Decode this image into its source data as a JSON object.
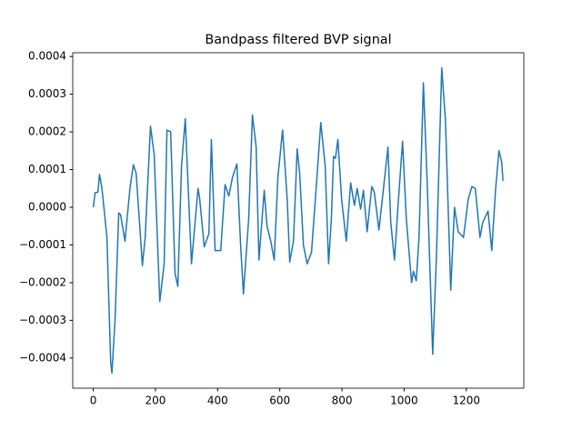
{
  "chart_data": {
    "type": "line",
    "title": "Bandpass filtered BVP signal",
    "x": [
      0,
      6,
      15,
      20,
      28,
      44,
      56,
      60,
      70,
      82,
      88,
      102,
      118,
      129,
      138,
      152,
      158,
      167,
      184,
      196,
      214,
      228,
      237,
      249,
      263,
      272,
      284,
      296,
      307,
      316,
      337,
      342,
      357,
      372,
      380,
      392,
      410,
      424,
      436,
      448,
      462,
      474,
      483,
      500,
      512,
      524,
      533,
      550,
      559,
      571,
      582,
      594,
      609,
      624,
      632,
      644,
      656,
      664,
      676,
      688,
      702,
      717,
      732,
      746,
      757,
      766,
      773,
      779,
      787,
      799,
      814,
      828,
      840,
      849,
      860,
      869,
      881,
      896,
      904,
      919,
      931,
      948,
      957,
      969,
      980,
      995,
      1007,
      1024,
      1030,
      1039,
      1048,
      1062,
      1074,
      1092,
      1104,
      1121,
      1133,
      1150,
      1162,
      1174,
      1191,
      1206,
      1218,
      1229,
      1244,
      1253,
      1270,
      1282,
      1294,
      1305,
      1314,
      1318
    ],
    "series": [
      {
        "name": "BVP",
        "color": "#1f77b4",
        "values": [
          0,
          3.9e-05,
          4e-05,
          8.7e-05,
          5e-05,
          -8e-05,
          -0.00041,
          -0.00044,
          -0.0003,
          -1.5e-05,
          -2e-05,
          -9e-05,
          5e-05,
          0.000113,
          9e-05,
          -8e-05,
          -0.000155,
          -8e-05,
          0.000215,
          0.00014,
          -0.00025,
          -0.00015,
          0.000205,
          0.0002,
          -0.000175,
          -0.00021,
          0.00011,
          0.000235,
          2e-05,
          -0.00015,
          5e-05,
          2.5e-05,
          -0.000105,
          -7e-05,
          0.00018,
          -0.000115,
          -0.000115,
          6e-05,
          3e-05,
          8e-05,
          0.000115,
          -0.0001,
          -0.00023,
          -3e-05,
          0.000245,
          0.00016,
          -0.00014,
          4.5e-05,
          -5e-05,
          -9e-05,
          -0.00014,
          8e-05,
          0.000205,
          2e-05,
          -0.000145,
          -9e-05,
          0.000155,
          9e-05,
          -0.0001,
          -0.00015,
          -0.00012,
          5e-05,
          0.000225,
          0.00011,
          -0.00015,
          -3e-05,
          0.000135,
          0.00013,
          0.00018,
          2e-05,
          -9e-05,
          6.5e-05,
          5e-06,
          5e-05,
          -5e-06,
          4.5e-05,
          -6.5e-05,
          5.5e-05,
          4e-05,
          -6e-05,
          3e-05,
          0.00016,
          -4e-05,
          -0.00014,
          0,
          0.000175,
          -3e-05,
          -0.0002,
          -0.00017,
          -0.000195,
          -8e-05,
          0.00033,
          7e-05,
          -0.00039,
          -0.00013,
          0.00037,
          0.00023,
          -0.00022,
          0,
          -6.5e-05,
          -8e-05,
          2e-05,
          5.5e-05,
          5e-05,
          -8e-05,
          -4e-05,
          -1e-05,
          -0.000115,
          4.5e-05,
          0.00015,
          0.00012,
          7e-05
        ]
      }
    ],
    "xlim": [
      -66,
      1385
    ],
    "ylim": [
      -0.00048,
      0.00041
    ],
    "xticks": [
      0,
      200,
      400,
      600,
      800,
      1000,
      1200
    ],
    "yticks": [
      {
        "value": -0.0004,
        "label": "−0.0004"
      },
      {
        "value": -0.0003,
        "label": "−0.0003"
      },
      {
        "value": -0.0002,
        "label": "−0.0002"
      },
      {
        "value": -0.0001,
        "label": "−0.0001"
      },
      {
        "value": 0,
        "label": "0.0000"
      },
      0.0001,
      0.0002,
      0.0003,
      0.0004
    ]
  }
}
